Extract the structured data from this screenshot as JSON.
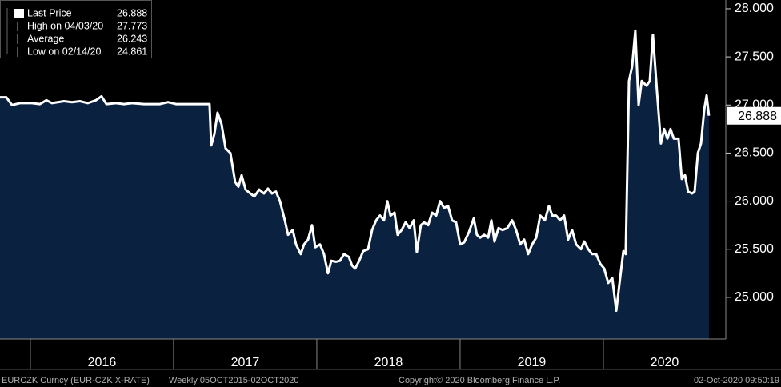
{
  "chart_data": {
    "type": "area",
    "x": [
      2015.788,
      2015.832,
      2015.872,
      2015.927,
      2016.011,
      2016.067,
      2016.112,
      2016.151,
      2016.235,
      2016.291,
      2016.346,
      2016.402,
      2016.458,
      2016.497,
      2016.531,
      2016.598,
      2016.654,
      2016.71,
      2016.793,
      2016.905,
      2016.961,
      2017.017,
      2017.129,
      2017.251,
      2017.263,
      2017.285,
      2017.307,
      2017.335,
      2017.363,
      2017.397,
      2017.43,
      2017.453,
      2017.475,
      2017.503,
      2017.536,
      2017.564,
      2017.598,
      2017.631,
      2017.659,
      2017.687,
      2017.715,
      2017.743,
      2017.777,
      2017.799,
      2017.832,
      2017.855,
      2017.888,
      2017.911,
      2017.939,
      2017.967,
      2017.989,
      2018.022,
      2018.05,
      2018.078,
      2018.101,
      2018.134,
      2018.162,
      2018.19,
      2018.224,
      2018.246,
      2018.268,
      2018.296,
      2018.324,
      2018.358,
      2018.386,
      2018.414,
      2018.441,
      2018.469,
      2018.492,
      2018.514,
      2018.542,
      2018.564,
      2018.592,
      2018.62,
      2018.648,
      2018.676,
      2018.698,
      2018.726,
      2018.749,
      2018.777,
      2018.805,
      2018.833,
      2018.86,
      2018.888,
      2018.916,
      2018.944,
      2018.972,
      2019.0,
      2019.028,
      2019.062,
      2019.095,
      2019.117,
      2019.14,
      2019.168,
      2019.196,
      2019.218,
      2019.24,
      2019.268,
      2019.296,
      2019.33,
      2019.363,
      2019.391,
      2019.419,
      2019.447,
      2019.475,
      2019.503,
      2019.531,
      2019.559,
      2019.592,
      2019.62,
      2019.643,
      2019.67,
      2019.698,
      2019.726,
      2019.754,
      2019.782,
      2019.81,
      2019.844,
      2019.866,
      2019.894,
      2019.922,
      2019.95,
      2019.978,
      2020.006,
      2020.034,
      2020.062,
      2020.09,
      2020.117,
      2020.14,
      2020.156,
      2020.179,
      2020.201,
      2020.223,
      2020.246,
      2020.268,
      2020.302,
      2020.324,
      2020.346,
      2020.374,
      2020.402,
      2020.425,
      2020.447,
      2020.469,
      2020.492,
      2020.525,
      2020.548,
      2020.57,
      2020.592,
      2020.62,
      2020.637,
      2020.66,
      2020.682,
      2020.704,
      2020.721,
      2020.737
    ],
    "series": [
      {
        "name": "Last Price",
        "color": "#ffffff",
        "fill": "#0b2140",
        "values": [
          27.08,
          27.08,
          27.0,
          27.02,
          27.02,
          27.01,
          27.05,
          27.02,
          27.04,
          27.03,
          27.04,
          27.02,
          27.05,
          27.09,
          27.01,
          27.02,
          27.01,
          27.02,
          27.01,
          27.01,
          27.03,
          27.01,
          27.01,
          27.01,
          26.58,
          26.7,
          26.92,
          26.8,
          26.55,
          26.5,
          26.2,
          26.15,
          26.27,
          26.12,
          26.08,
          26.05,
          26.12,
          26.08,
          26.13,
          26.08,
          26.1,
          26.0,
          25.8,
          25.65,
          25.7,
          25.55,
          25.45,
          25.55,
          25.6,
          25.75,
          25.52,
          25.55,
          25.45,
          25.25,
          25.38,
          25.37,
          25.38,
          25.45,
          25.42,
          25.33,
          25.3,
          25.38,
          25.48,
          25.5,
          25.7,
          25.8,
          25.85,
          25.8,
          26.0,
          25.85,
          25.88,
          25.65,
          25.7,
          25.78,
          25.72,
          25.8,
          25.47,
          25.75,
          25.78,
          25.75,
          25.88,
          25.85,
          26.0,
          25.93,
          25.95,
          25.8,
          25.78,
          25.55,
          25.57,
          25.68,
          25.82,
          25.65,
          25.62,
          25.65,
          25.62,
          25.8,
          25.58,
          25.72,
          25.7,
          25.72,
          25.8,
          25.7,
          25.55,
          25.6,
          25.45,
          25.55,
          25.62,
          25.85,
          25.8,
          25.95,
          25.85,
          25.85,
          25.8,
          25.85,
          25.6,
          25.7,
          25.55,
          25.5,
          25.58,
          25.5,
          25.45,
          25.45,
          25.35,
          25.3,
          25.15,
          25.2,
          24.861,
          25.2,
          25.48,
          25.45,
          27.25,
          27.4,
          27.773,
          27.0,
          27.25,
          27.2,
          27.25,
          27.73,
          27.15,
          26.6,
          26.75,
          26.65,
          26.75,
          26.65,
          26.65,
          26.23,
          26.27,
          26.1,
          26.08,
          26.1,
          26.5,
          26.6,
          26.95,
          27.1,
          26.888
        ]
      }
    ],
    "xlim": [
      2015.788,
      2020.855
    ],
    "xticks": [
      {
        "value": 2016,
        "label": "2016"
      },
      {
        "value": 2017,
        "label": "2017"
      },
      {
        "value": 2018,
        "label": "2018"
      },
      {
        "value": 2019,
        "label": "2019"
      },
      {
        "value": 2020,
        "label": "2020"
      }
    ],
    "ylim": [
      24.567,
      28.091
    ],
    "yticks": [
      {
        "value": 25,
        "label": "25.000"
      },
      {
        "value": 25.5,
        "label": "25.500"
      },
      {
        "value": 26,
        "label": "26.000"
      },
      {
        "value": 26.5,
        "label": "26.500"
      },
      {
        "value": 27,
        "label": "27.000"
      },
      {
        "value": 27.5,
        "label": "27.500"
      },
      {
        "value": 28,
        "label": "28.000"
      }
    ],
    "legend": [
      {
        "label": "Last Price",
        "value": 26.888
      },
      {
        "label": "High on 04/03/20",
        "value": 27.773
      },
      {
        "label": "Average",
        "value": 26.243
      },
      {
        "label": "Low on 02/14/20",
        "value": 24.861
      }
    ],
    "footer": {
      "security": "EURCZK Curncy (EUR-CZK X-RATE)",
      "period": "Weekly 05OCT2015-02OCT2020",
      "copyright": "Copyright© 2020 Bloomberg Finance L.P.",
      "timestamp": "02-Oct-2020 09:50:19"
    }
  }
}
